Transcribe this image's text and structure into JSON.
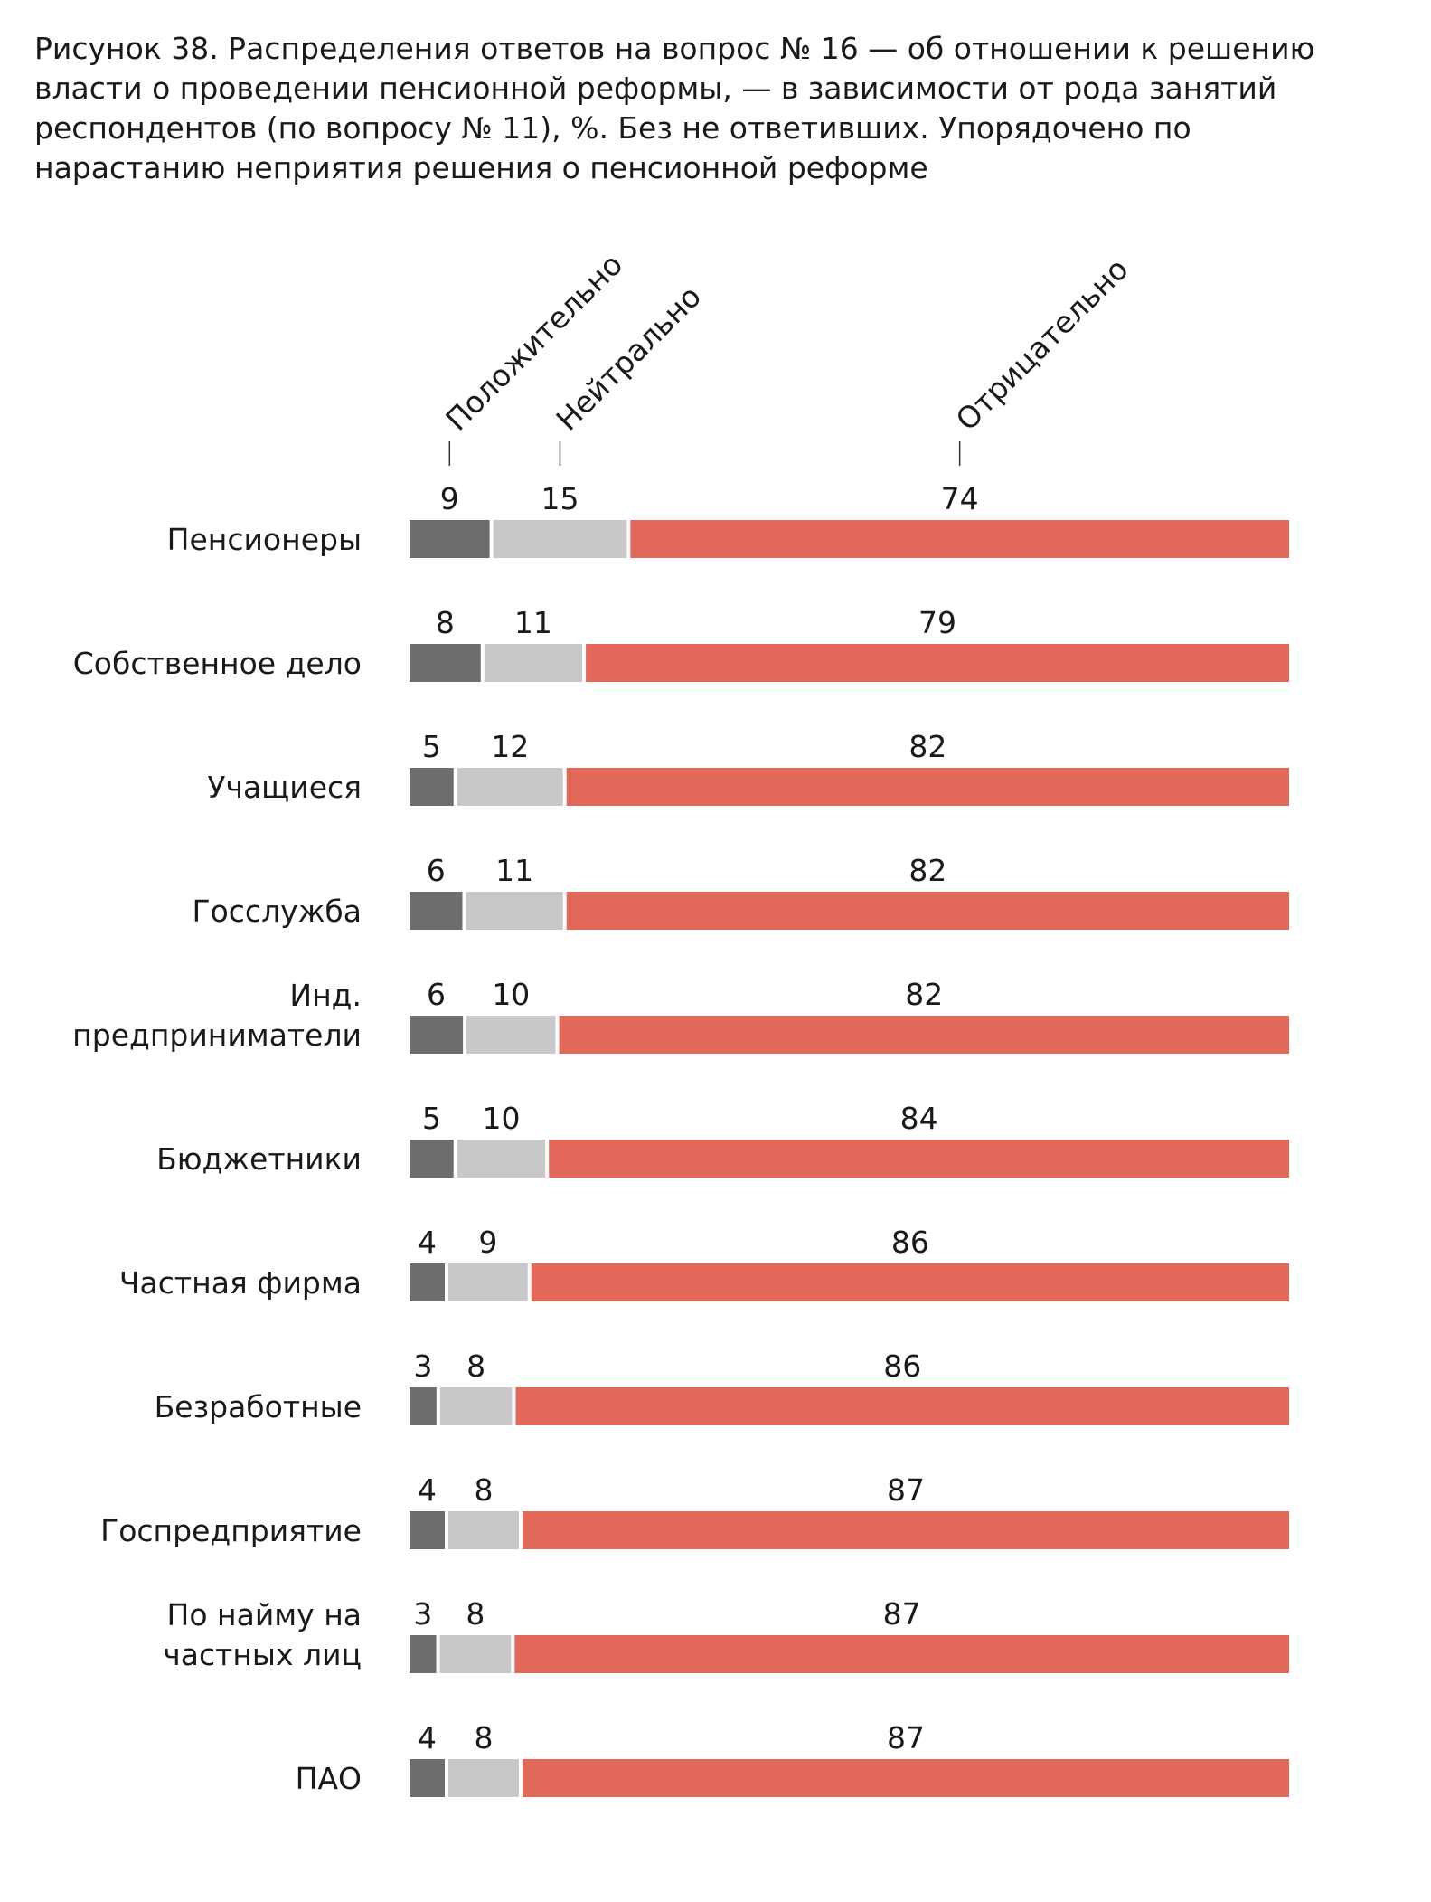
{
  "title": "Рисунок 38. Распределения ответов на вопрос № 16 — об отношении к решению власти о проведении пенсионной реформы, — в зависимости от рода занятий респондентов (по вопросу № 11), %. Без не ответивших. Упорядочено по нарастанию неприятия решения о пенсионной реформе",
  "colors": {
    "positive": "#6d6d6d",
    "neutral": "#c8c8c8",
    "negative": "#e2685a"
  },
  "chart_data": {
    "type": "bar",
    "orientation": "horizontal",
    "stacked": true,
    "title": "Рисунок 38. Распределения ответов на вопрос № 16 — об отношении к решению власти о проведении пенсионной реформы, — в зависимости от рода занятий респондентов (по вопросу № 11), %. Без не ответивших. Упорядочено по нарастанию неприятия решения о пенсионной реформе",
    "unit": "%",
    "legend_placement": "top",
    "categories": [
      [
        "Пенсионеры"
      ],
      [
        "Собственное дело"
      ],
      [
        "Учащиеся"
      ],
      [
        "Госслужба"
      ],
      [
        "Инд.",
        "предприниматели"
      ],
      [
        "Бюджетники"
      ],
      [
        "Частная фирма"
      ],
      [
        "Безработные"
      ],
      [
        "Госпредприятие"
      ],
      [
        "По найму на",
        "частных лиц"
      ],
      [
        "ПАО"
      ]
    ],
    "series": [
      {
        "name": "Положительно",
        "color": "#6d6d6d",
        "values": [
          9,
          8,
          5,
          6,
          6,
          5,
          4,
          3,
          4,
          3,
          4
        ]
      },
      {
        "name": "Нейтрально",
        "color": "#c8c8c8",
        "values": [
          15,
          11,
          12,
          11,
          10,
          10,
          9,
          8,
          8,
          8,
          8
        ]
      },
      {
        "name": "Отрицательно",
        "color": "#e2685a",
        "values": [
          74,
          79,
          82,
          82,
          82,
          84,
          86,
          86,
          87,
          87,
          87
        ]
      }
    ]
  }
}
